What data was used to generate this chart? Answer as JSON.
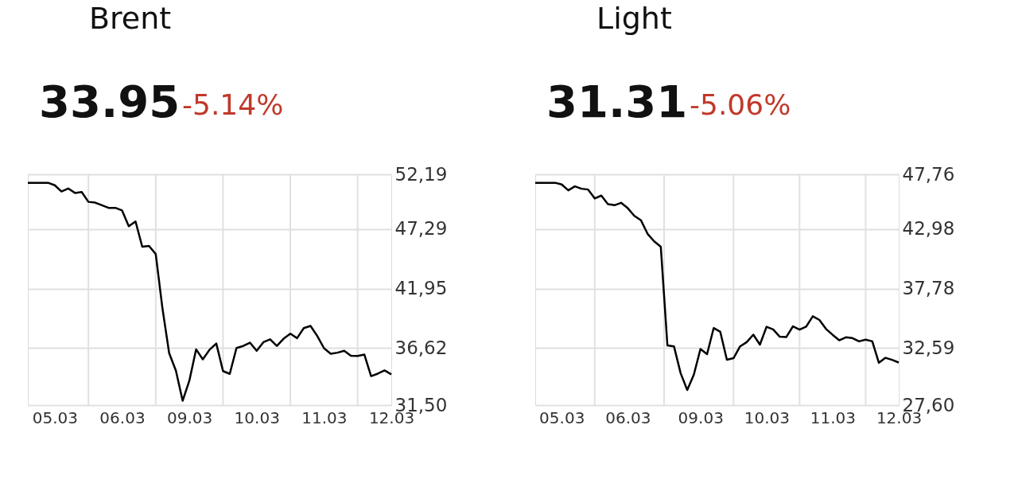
{
  "chart_data": [
    {
      "type": "line",
      "title": "Brent",
      "subtitle": "33.95",
      "annotations": [
        "-5.14%"
      ],
      "grid": true,
      "categories": [
        null,
        null,
        null,
        null,
        "05.03",
        null,
        null,
        null,
        null,
        null,
        null,
        null,
        null,
        null,
        "06.03",
        null,
        null,
        null,
        null,
        null,
        null,
        null,
        null,
        null,
        "09.03",
        null,
        null,
        null,
        null,
        null,
        null,
        null,
        null,
        null,
        "10.03",
        null,
        null,
        null,
        null,
        null,
        null,
        null,
        null,
        null,
        "11.03",
        null,
        null,
        null,
        null,
        null,
        null,
        null,
        null,
        null,
        "12.03"
      ],
      "ylim": [
        31.5,
        52.19
      ],
      "yticks": [
        {
          "value": 31.5,
          "label": "31,50"
        },
        {
          "value": 36.62,
          "label": "36,62"
        },
        {
          "value": 41.95,
          "label": "41,95"
        },
        {
          "value": 47.29,
          "label": "47,29"
        },
        {
          "value": 52.19,
          "label": "52,19"
        }
      ],
      "series": [
        {
          "color": "#000000",
          "values": [
            51.43,
            51.43,
            51.43,
            51.43,
            51.21,
            50.65,
            50.92,
            50.52,
            50.6,
            49.72,
            49.65,
            49.42,
            49.18,
            49.18,
            48.95,
            47.53,
            47.96,
            45.7,
            45.77,
            45.05,
            40.18,
            36.15,
            34.59,
            31.89,
            33.7,
            36.5,
            35.6,
            36.47,
            37.02,
            34.55,
            34.3,
            36.62,
            36.8,
            37.1,
            36.37,
            37.14,
            37.4,
            36.8,
            37.45,
            37.9,
            37.5,
            38.4,
            38.6,
            37.7,
            36.6,
            36.1,
            36.2,
            36.37,
            35.93,
            35.9,
            36.03,
            34.1,
            34.32,
            34.61,
            34.26
          ]
        }
      ]
    },
    {
      "type": "line",
      "title": "Light",
      "subtitle": "31.31",
      "annotations": [
        "-5.06%"
      ],
      "grid": true,
      "categories": [
        null,
        null,
        null,
        null,
        "05.03",
        null,
        null,
        null,
        null,
        null,
        null,
        null,
        null,
        null,
        "06.03",
        null,
        null,
        null,
        null,
        null,
        null,
        null,
        null,
        null,
        null,
        "09.03",
        null,
        null,
        null,
        null,
        null,
        null,
        null,
        null,
        null,
        "10.03",
        null,
        null,
        null,
        null,
        null,
        null,
        null,
        null,
        null,
        "11.03",
        null,
        null,
        null,
        null,
        null,
        null,
        null,
        null,
        null,
        "12.03"
      ],
      "ylim": [
        27.6,
        47.76
      ],
      "yticks": [
        {
          "value": 27.6,
          "label": "27,60"
        },
        {
          "value": 32.59,
          "label": "32,59"
        },
        {
          "value": 37.78,
          "label": "37,78"
        },
        {
          "value": 42.98,
          "label": "42,98"
        },
        {
          "value": 47.76,
          "label": "47,76"
        }
      ],
      "series": [
        {
          "color": "#000000",
          "values": [
            47.02,
            47.02,
            47.02,
            47.02,
            46.87,
            46.36,
            46.71,
            46.5,
            46.43,
            45.65,
            45.9,
            45.15,
            45.06,
            45.27,
            44.8,
            44.13,
            43.74,
            42.56,
            41.9,
            41.43,
            32.82,
            32.72,
            30.39,
            28.92,
            30.26,
            32.5,
            32.05,
            34.33,
            34.0,
            31.56,
            31.7,
            32.73,
            33.1,
            33.75,
            32.88,
            34.44,
            34.21,
            33.57,
            33.55,
            34.48,
            34.2,
            34.46,
            35.36,
            35.04,
            34.25,
            33.74,
            33.26,
            33.52,
            33.45,
            33.17,
            33.32,
            33.17,
            31.3,
            31.73,
            31.55,
            31.32
          ]
        }
      ]
    }
  ]
}
